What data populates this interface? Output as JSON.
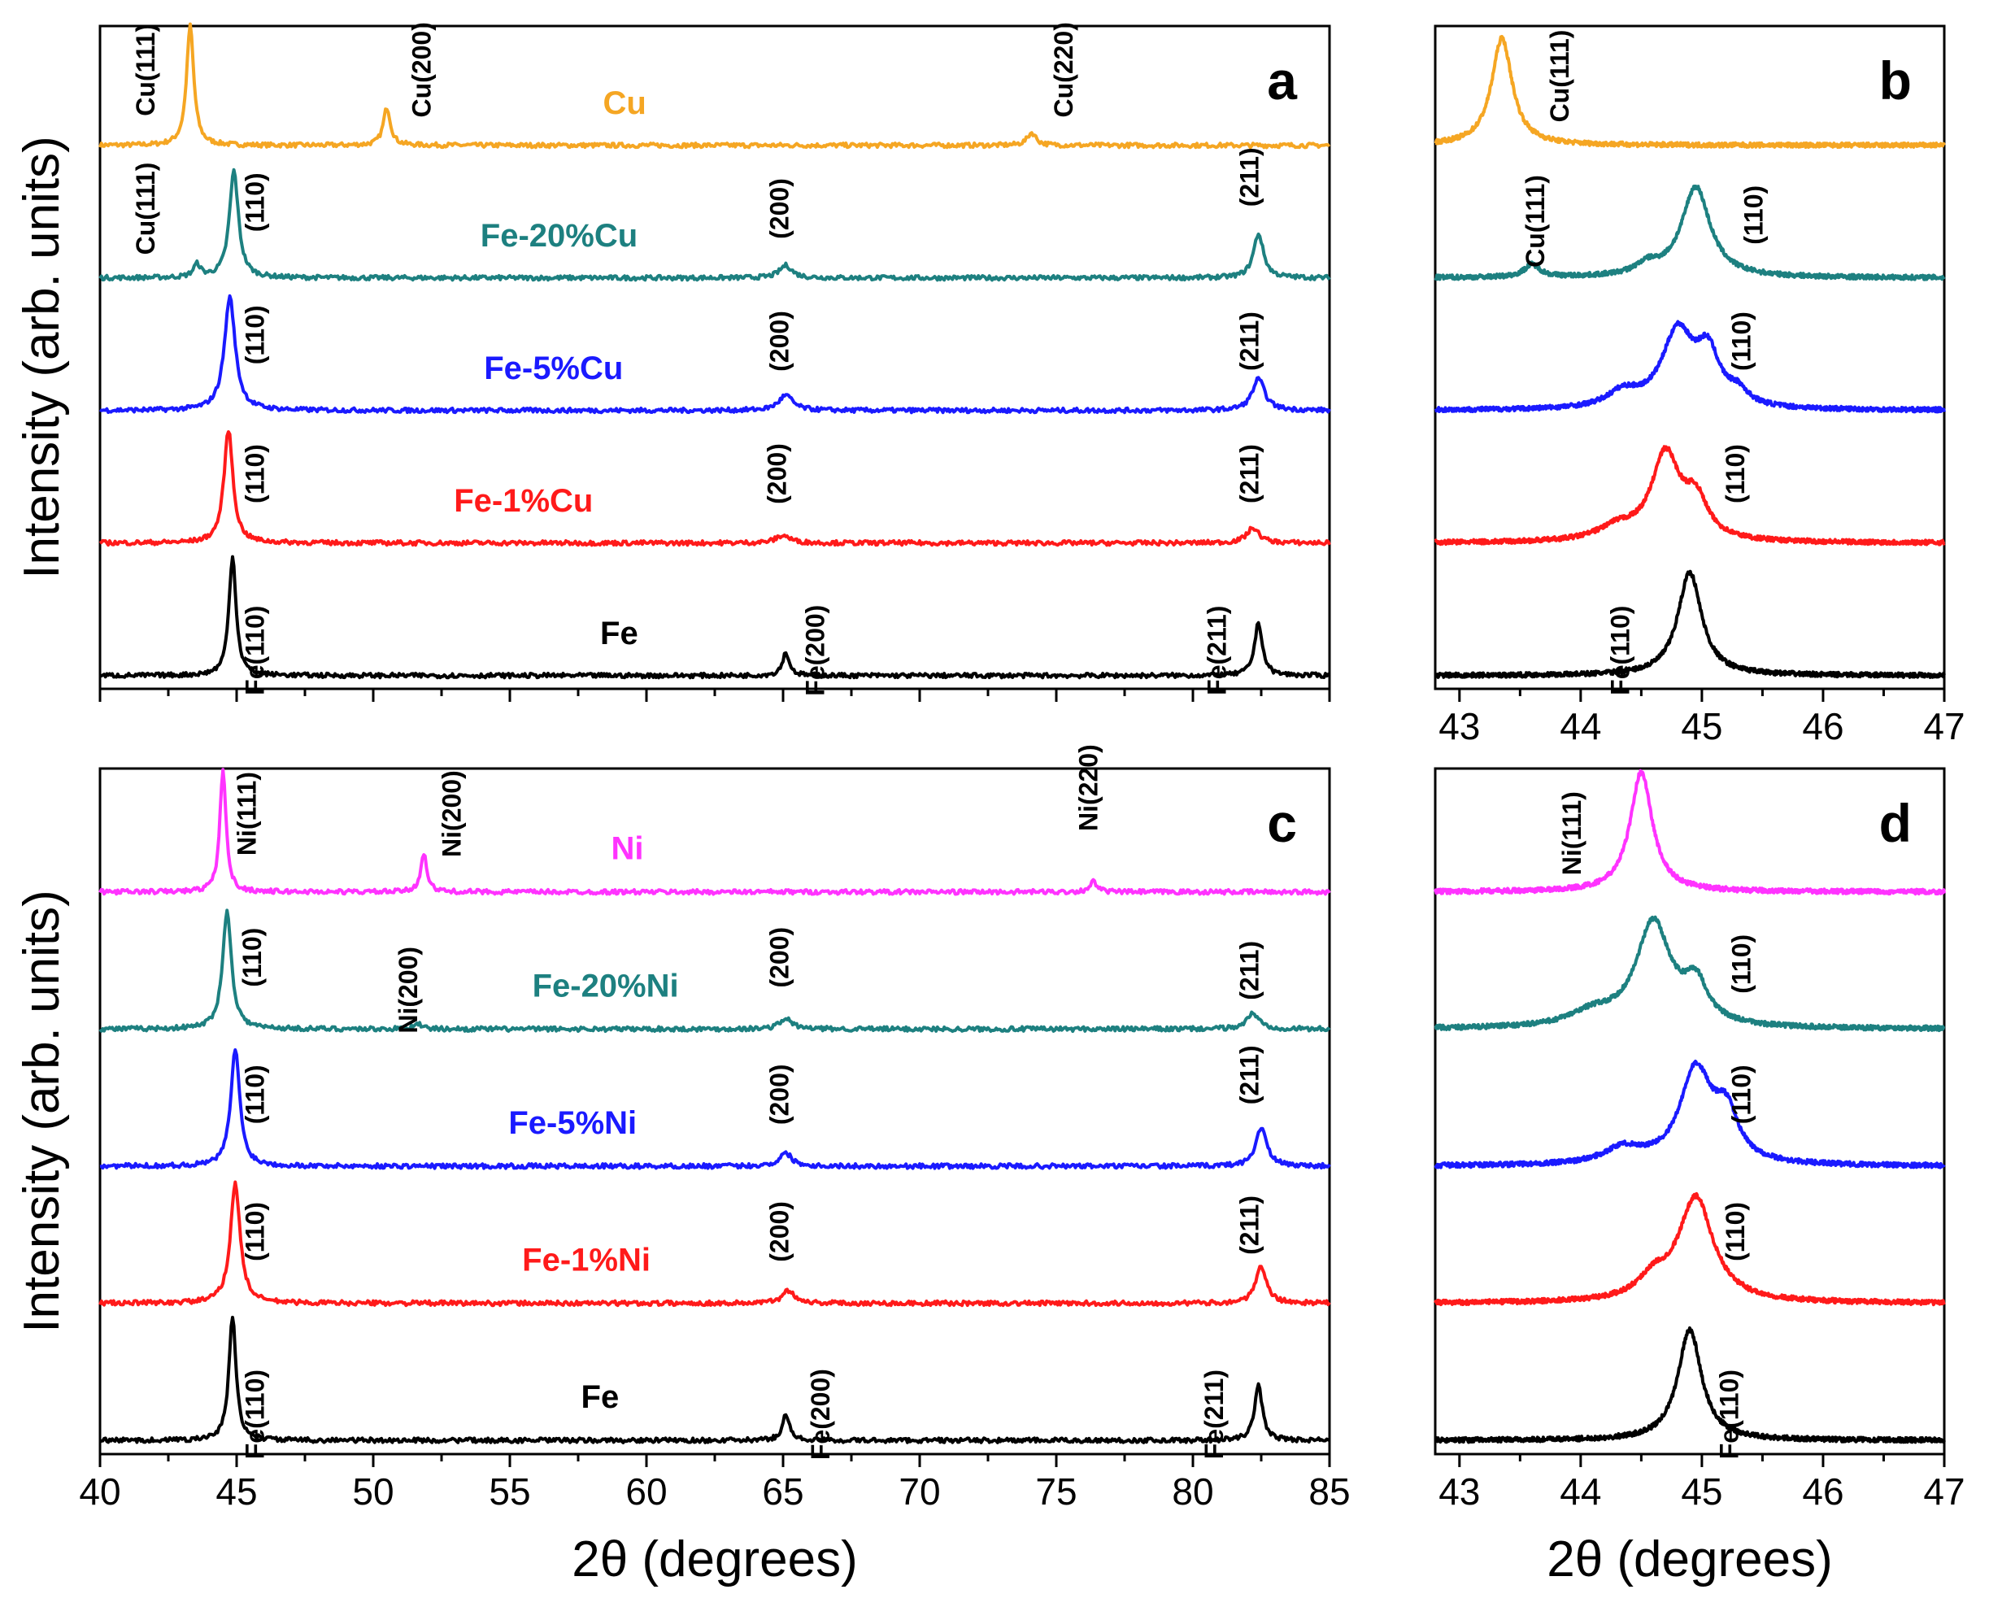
{
  "chart_data": [
    {
      "panel": "a",
      "type": "line",
      "panel_label": "a",
      "xlim": [
        40,
        85
      ],
      "ylabel": "Intensity (arb. units)",
      "xlabel": "",
      "series": [
        {
          "name": "Cu",
          "color": "#f5a623",
          "base": 0,
          "peaks": [
            [
              43.3,
              0.95,
              0.2
            ],
            [
              50.5,
              0.3,
              0.2
            ],
            [
              74.1,
              0.1,
              0.25
            ]
          ],
          "peak_labels": [
            {
              "text": "Cu(111)",
              "x": 42.0,
              "y": 0.6
            },
            {
              "text": "Cu(200)",
              "x": 52.1,
              "y": 0.6
            },
            {
              "text": "Cu(220)",
              "x": 75.6,
              "y": 0.6
            }
          ]
        },
        {
          "name": "Fe-20%Cu",
          "color": "#1d8080",
          "base": 1,
          "peaks": [
            [
              44.9,
              0.85,
              0.25
            ],
            [
              43.55,
              0.1,
              0.2
            ],
            [
              65.1,
              0.1,
              0.35
            ],
            [
              82.4,
              0.35,
              0.28
            ]
          ],
          "peak_labels": [
            {
              "text": "Cu(111)",
              "x": 42.0,
              "y": 0.55
            },
            {
              "text": "(110)",
              "x": 46.0,
              "y": 0.6
            },
            {
              "text": "(200)",
              "x": 65.2,
              "y": 0.55
            },
            {
              "text": "(211)",
              "x": 82.4,
              "y": 0.8
            }
          ]
        },
        {
          "name": "Fe-5%Cu",
          "color": "#1a1aff",
          "base": 2,
          "peaks": [
            [
              44.75,
              0.9,
              0.3
            ],
            [
              65.1,
              0.12,
              0.4
            ],
            [
              82.4,
              0.25,
              0.35
            ]
          ],
          "peak_labels": [
            {
              "text": "(110)",
              "x": 46.0,
              "y": 0.6
            },
            {
              "text": "(200)",
              "x": 65.2,
              "y": 0.55
            },
            {
              "text": "(211)",
              "x": 82.4,
              "y": 0.55
            }
          ]
        },
        {
          "name": "Fe-1%Cu",
          "color": "#ff1a1a",
          "base": 3,
          "peaks": [
            [
              44.7,
              0.9,
              0.25
            ],
            [
              65.0,
              0.06,
              0.4
            ],
            [
              82.2,
              0.12,
              0.35
            ]
          ],
          "peak_labels": [
            {
              "text": "(110)",
              "x": 46.0,
              "y": 0.55
            },
            {
              "text": "(200)",
              "x": 65.1,
              "y": 0.55
            },
            {
              "text": "(211)",
              "x": 82.4,
              "y": 0.55
            }
          ]
        },
        {
          "name": "Fe",
          "color": "#000000",
          "base": 4,
          "peaks": [
            [
              44.85,
              0.95,
              0.2
            ],
            [
              65.1,
              0.18,
              0.2
            ],
            [
              82.4,
              0.42,
              0.22
            ]
          ],
          "peak_labels": [
            {
              "text": "Fe(110)",
              "x": 46.0,
              "y": 0.2
            },
            {
              "text": "Fe(200)",
              "x": 66.5,
              "y": 0.2
            },
            {
              "text": "Fe(211)",
              "x": 81.2,
              "y": 0.2
            }
          ]
        }
      ]
    },
    {
      "panel": "b",
      "type": "line",
      "panel_label": "b",
      "xlim": [
        42.8,
        47
      ],
      "xticks": [
        43,
        44,
        45,
        46,
        47
      ],
      "xlabel": "",
      "series": [
        {
          "name": "Cu",
          "color": "#f5a623",
          "base": 0,
          "peaks": [
            [
              43.35,
              0.85,
              0.13
            ]
          ],
          "peak_labels": [
            {
              "text": "Cu(111)",
              "x": 43.9,
              "y": 0.55
            }
          ]
        },
        {
          "name": "Fe-20%Cu",
          "color": "#1d8080",
          "base": 1,
          "peaks": [
            [
              44.95,
              0.72,
              0.18
            ],
            [
              44.55,
              0.08,
              0.15
            ],
            [
              43.6,
              0.1,
              0.1
            ]
          ],
          "peak_labels": [
            {
              "text": "Cu(111)",
              "x": 43.7,
              "y": 0.45
            },
            {
              "text": "(110)",
              "x": 45.5,
              "y": 0.5
            }
          ]
        },
        {
          "name": "Fe-5%Cu",
          "color": "#1a1aff",
          "base": 2,
          "peaks": [
            [
              44.8,
              0.6,
              0.2
            ],
            [
              45.05,
              0.4,
              0.15
            ],
            [
              44.35,
              0.12,
              0.2
            ],
            [
              45.3,
              0.1,
              0.12
            ]
          ],
          "peak_labels": [
            {
              "text": "(110)",
              "x": 45.4,
              "y": 0.55
            }
          ]
        },
        {
          "name": "Fe-1%Cu",
          "color": "#ff1a1a",
          "base": 3,
          "peaks": [
            [
              44.7,
              0.68,
              0.18
            ],
            [
              44.95,
              0.3,
              0.15
            ],
            [
              44.3,
              0.1,
              0.25
            ]
          ],
          "peak_labels": [
            {
              "text": "(110)",
              "x": 45.35,
              "y": 0.55
            }
          ]
        },
        {
          "name": "Fe",
          "color": "#000000",
          "base": 4,
          "peaks": [
            [
              44.9,
              0.82,
              0.15
            ]
          ],
          "peak_labels": [
            {
              "text": "Fe(110)",
              "x": 44.4,
              "y": 0.2
            }
          ]
        }
      ]
    },
    {
      "panel": "c",
      "type": "line",
      "panel_label": "c",
      "xlim": [
        40,
        85
      ],
      "xticks": [
        40,
        45,
        50,
        55,
        60,
        65,
        70,
        75,
        80,
        85
      ],
      "ylabel": "Intensity (arb. units)",
      "xlabel": "2θ (degrees)",
      "series": [
        {
          "name": "Ni",
          "color": "#ff33ff",
          "base": 0,
          "peaks": [
            [
              44.5,
              0.95,
              0.17
            ],
            [
              51.85,
              0.3,
              0.17
            ],
            [
              76.35,
              0.08,
              0.2
            ]
          ],
          "peak_labels": [
            {
              "text": "Ni(111)",
              "x": 45.7,
              "y": 0.6
            },
            {
              "text": "Ni(200)",
              "x": 53.2,
              "y": 0.6
            },
            {
              "text": "Ni(220)",
              "x": 76.5,
              "y": 0.8
            }
          ]
        },
        {
          "name": "Fe-20%Ni",
          "color": "#1d8080",
          "base": 1,
          "peaks": [
            [
              44.65,
              0.9,
              0.25
            ],
            [
              51.6,
              0.05,
              0.2
            ],
            [
              65.1,
              0.08,
              0.35
            ],
            [
              82.2,
              0.12,
              0.35
            ]
          ],
          "peak_labels": [
            {
              "text": "(110)",
              "x": 45.9,
              "y": 0.55
            },
            {
              "text": "Ni(200)",
              "x": 51.6,
              "y": 0.3
            },
            {
              "text": "(200)",
              "x": 65.2,
              "y": 0.55
            },
            {
              "text": "(211)",
              "x": 82.4,
              "y": 0.45
            }
          ]
        },
        {
          "name": "Fe-5%Ni",
          "color": "#1a1aff",
          "base": 2,
          "peaks": [
            [
              44.95,
              0.9,
              0.25
            ],
            [
              65.1,
              0.1,
              0.35
            ],
            [
              82.5,
              0.3,
              0.3
            ]
          ],
          "peak_labels": [
            {
              "text": "(110)",
              "x": 46.0,
              "y": 0.55
            },
            {
              "text": "(200)",
              "x": 65.2,
              "y": 0.55
            },
            {
              "text": "(211)",
              "x": 82.4,
              "y": 0.7
            }
          ]
        },
        {
          "name": "Fe-1%Ni",
          "color": "#ff1a1a",
          "base": 3,
          "peaks": [
            [
              44.95,
              0.92,
              0.27
            ],
            [
              65.2,
              0.1,
              0.35
            ],
            [
              82.5,
              0.28,
              0.3
            ]
          ],
          "peak_labels": [
            {
              "text": "(110)",
              "x": 46.0,
              "y": 0.55
            },
            {
              "text": "(200)",
              "x": 65.2,
              "y": 0.55
            },
            {
              "text": "(211)",
              "x": 82.4,
              "y": 0.6
            }
          ]
        },
        {
          "name": "Fe",
          "color": "#000000",
          "base": 4,
          "peaks": [
            [
              44.85,
              0.95,
              0.2
            ],
            [
              65.1,
              0.2,
              0.2
            ],
            [
              82.4,
              0.42,
              0.22
            ]
          ],
          "peak_labels": [
            {
              "text": "Fe(110)",
              "x": 46.0,
              "y": 0.2
            },
            {
              "text": "Fe(200)",
              "x": 66.7,
              "y": 0.2
            },
            {
              "text": "Fe(211)",
              "x": 81.1,
              "y": 0.2
            }
          ]
        }
      ]
    },
    {
      "panel": "d",
      "type": "line",
      "panel_label": "d",
      "xlim": [
        42.8,
        47
      ],
      "xticks": [
        43,
        44,
        45,
        46,
        47
      ],
      "xlabel": "2θ (degrees)",
      "series": [
        {
          "name": "Ni",
          "color": "#ff33ff",
          "base": 0,
          "peaks": [
            [
              44.5,
              0.92,
              0.14
            ]
          ],
          "peak_labels": [
            {
              "text": "Ni(111)",
              "x": 44.0,
              "y": 0.45
            }
          ]
        },
        {
          "name": "Fe-20%Ni",
          "color": "#1d8080",
          "base": 1,
          "peaks": [
            [
              44.6,
              0.8,
              0.22
            ],
            [
              44.95,
              0.3,
              0.15
            ],
            [
              44.1,
              0.1,
              0.3
            ]
          ],
          "peak_labels": [
            {
              "text": "(110)",
              "x": 45.4,
              "y": 0.5
            }
          ]
        },
        {
          "name": "Fe-5%Ni",
          "color": "#1a1aff",
          "base": 2,
          "peaks": [
            [
              44.95,
              0.72,
              0.2
            ],
            [
              45.2,
              0.35,
              0.15
            ],
            [
              44.35,
              0.12,
              0.25
            ]
          ],
          "peak_labels": [
            {
              "text": "(110)",
              "x": 45.4,
              "y": 0.55
            }
          ]
        },
        {
          "name": "Fe-1%Ni",
          "color": "#ff1a1a",
          "base": 3,
          "peaks": [
            [
              44.95,
              0.8,
              0.22
            ],
            [
              44.6,
              0.15,
              0.2
            ]
          ],
          "peak_labels": [
            {
              "text": "(110)",
              "x": 45.35,
              "y": 0.55
            }
          ]
        },
        {
          "name": "Fe",
          "color": "#000000",
          "base": 4,
          "peaks": [
            [
              44.9,
              0.85,
              0.15
            ]
          ],
          "peak_labels": [
            {
              "text": "Fe(110)",
              "x": 45.3,
              "y": 0.2
            }
          ]
        }
      ]
    }
  ]
}
